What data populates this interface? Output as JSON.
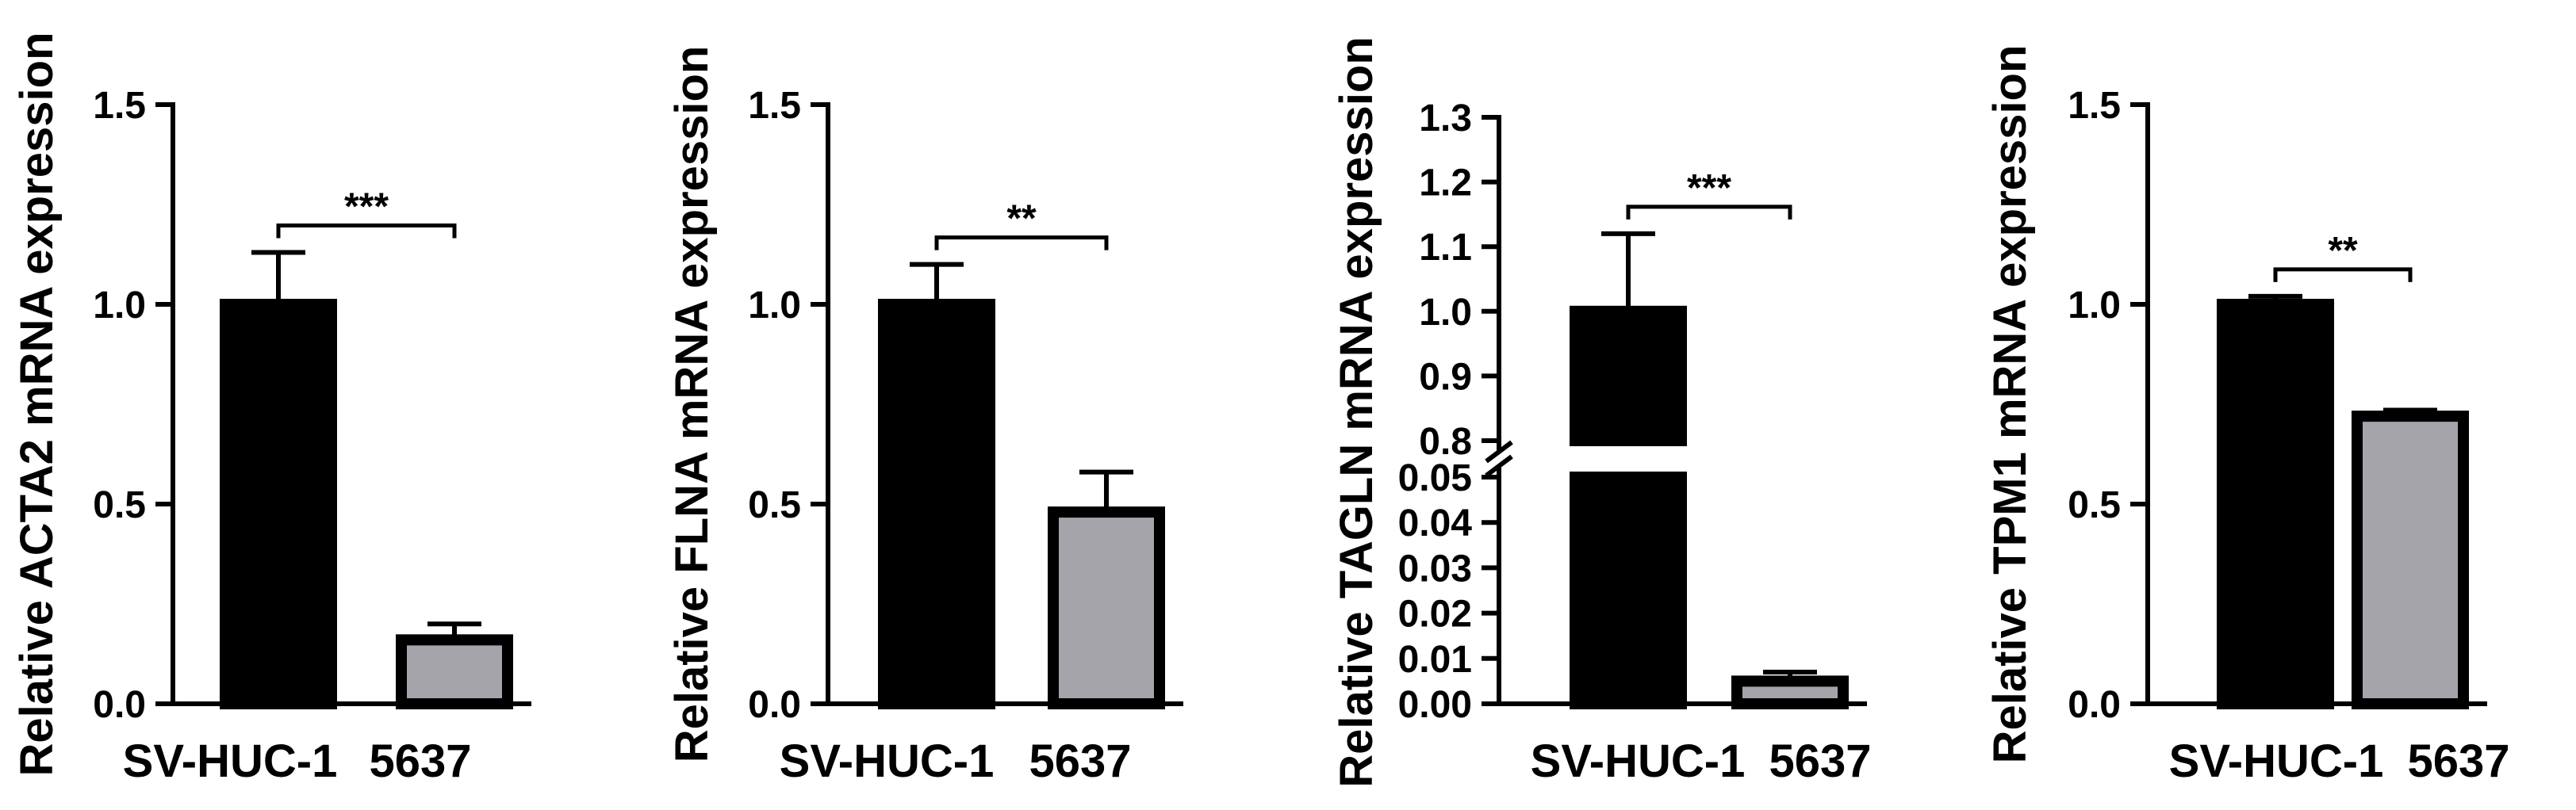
{
  "colors": {
    "black": "#000000",
    "gray": "#a5a4aa"
  },
  "chart_data": [
    {
      "type": "bar",
      "ylabel": "Relative ACTA2 mRNA expression",
      "categories": [
        "SV-HUC-1",
        "5637"
      ],
      "values": [
        1.0,
        0.16
      ],
      "errors": [
        0.13,
        0.04
      ],
      "ylim": [
        0,
        1.5
      ],
      "yticks": [
        0,
        0.5,
        1.0,
        1.5
      ],
      "ytick_labels": [
        "0.0",
        "0.5",
        "1.0",
        "1.5"
      ],
      "significance": "***",
      "bar_colors": [
        "#000000",
        "#a5a4aa"
      ]
    },
    {
      "type": "bar",
      "ylabel": "Relative FLNA mRNA expression",
      "categories": [
        "SV-HUC-1",
        "5637"
      ],
      "values": [
        1.0,
        0.48
      ],
      "errors": [
        0.1,
        0.1
      ],
      "ylim": [
        0,
        1.5
      ],
      "yticks": [
        0,
        0.5,
        1.0,
        1.5
      ],
      "ytick_labels": [
        "0.0",
        "0.5",
        "1.0",
        "1.5"
      ],
      "significance": "**",
      "bar_colors": [
        "#000000",
        "#a5a4aa"
      ]
    },
    {
      "type": "bar",
      "ylabel": "Relative TAGLN  mRNA expression",
      "categories": [
        "SV-HUC-1",
        "5637"
      ],
      "values": [
        1.0,
        0.005
      ],
      "errors": [
        0.12,
        0.002
      ],
      "axis_break": {
        "lower": [
          0,
          0.05
        ],
        "upper": [
          0.8,
          1.3
        ]
      },
      "yticks_lower": [
        0,
        0.01,
        0.02,
        0.03,
        0.04,
        0.05
      ],
      "ytick_labels_lower": [
        "0.00",
        "0.01",
        "0.02",
        "0.03",
        "0.04",
        "0.05"
      ],
      "yticks_upper": [
        0.8,
        0.9,
        1.0,
        1.1,
        1.2,
        1.3
      ],
      "ytick_labels_upper": [
        "0.8",
        "0.9",
        "1.0",
        "1.1",
        "1.2",
        "1.3"
      ],
      "significance": "***",
      "bar_colors": [
        "#000000",
        "#a5a4aa"
      ]
    },
    {
      "type": "bar",
      "ylabel": "Relative TPM1 mRNA expression",
      "categories": [
        "SV-HUC-1",
        "5637"
      ],
      "values": [
        1.0,
        0.72
      ],
      "errors": [
        0.02,
        0.015
      ],
      "ylim": [
        0,
        1.5
      ],
      "yticks": [
        0,
        0.5,
        1.0,
        1.5
      ],
      "ytick_labels": [
        "0.0",
        "0.5",
        "1.0",
        "1.5"
      ],
      "significance": "**",
      "bar_colors": [
        "#000000",
        "#a5a4aa"
      ]
    }
  ]
}
